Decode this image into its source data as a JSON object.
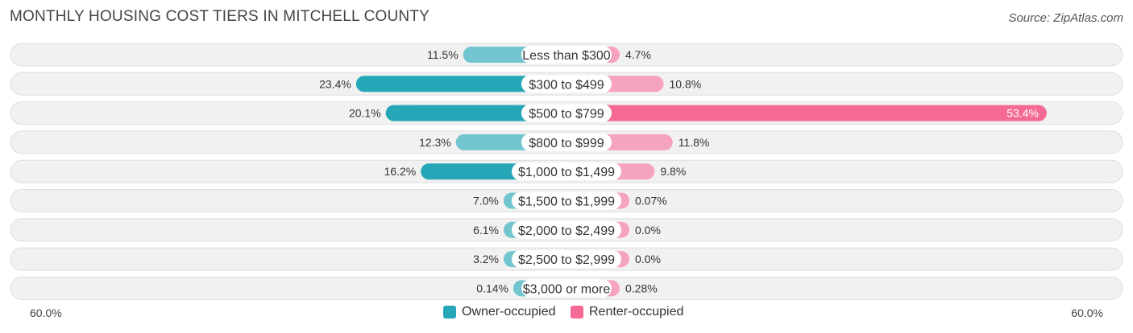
{
  "header": {
    "title": "MONTHLY HOUSING COST TIERS IN MITCHELL COUNTY",
    "source": "Source: ZipAtlas.com"
  },
  "axis": {
    "left_label": "60.0%",
    "right_label": "60.0%"
  },
  "legend": {
    "owner_label": "Owner-occupied",
    "renter_label": "Renter-occupied"
  },
  "colors": {
    "owner_strong": "#26a7b8",
    "owner_light": "#72c5cf",
    "renter_strong": "#f56a94",
    "renter_light": "#f6a3bd",
    "row_bg": "#f1f1f1",
    "row_border": "#dedede"
  },
  "chart_data": {
    "type": "bar",
    "orientation": "horizontal-diverging",
    "title": "MONTHLY HOUSING COST TIERS IN MITCHELL COUNTY",
    "xlim": [
      -60,
      60
    ],
    "categories": [
      "Less than $300",
      "$300 to $499",
      "$500 to $799",
      "$800 to $999",
      "$1,000 to $1,499",
      "$1,500 to $1,999",
      "$2,000 to $2,499",
      "$2,500 to $2,999",
      "$3,000 or more"
    ],
    "series": [
      {
        "name": "Owner-occupied",
        "side": "left",
        "values": [
          11.5,
          23.4,
          20.1,
          12.3,
          16.2,
          7.0,
          6.1,
          3.2,
          0.14
        ],
        "labels": [
          "11.5%",
          "23.4%",
          "20.1%",
          "12.3%",
          "16.2%",
          "7.0%",
          "6.1%",
          "3.2%",
          "0.14%"
        ]
      },
      {
        "name": "Renter-occupied",
        "side": "right",
        "values": [
          4.7,
          10.8,
          53.4,
          11.8,
          9.8,
          0.07,
          0.0,
          0.0,
          0.28
        ],
        "labels": [
          "4.7%",
          "10.8%",
          "53.4%",
          "11.8%",
          "9.8%",
          "0.07%",
          "0.0%",
          "0.0%",
          "0.28%"
        ]
      }
    ]
  }
}
